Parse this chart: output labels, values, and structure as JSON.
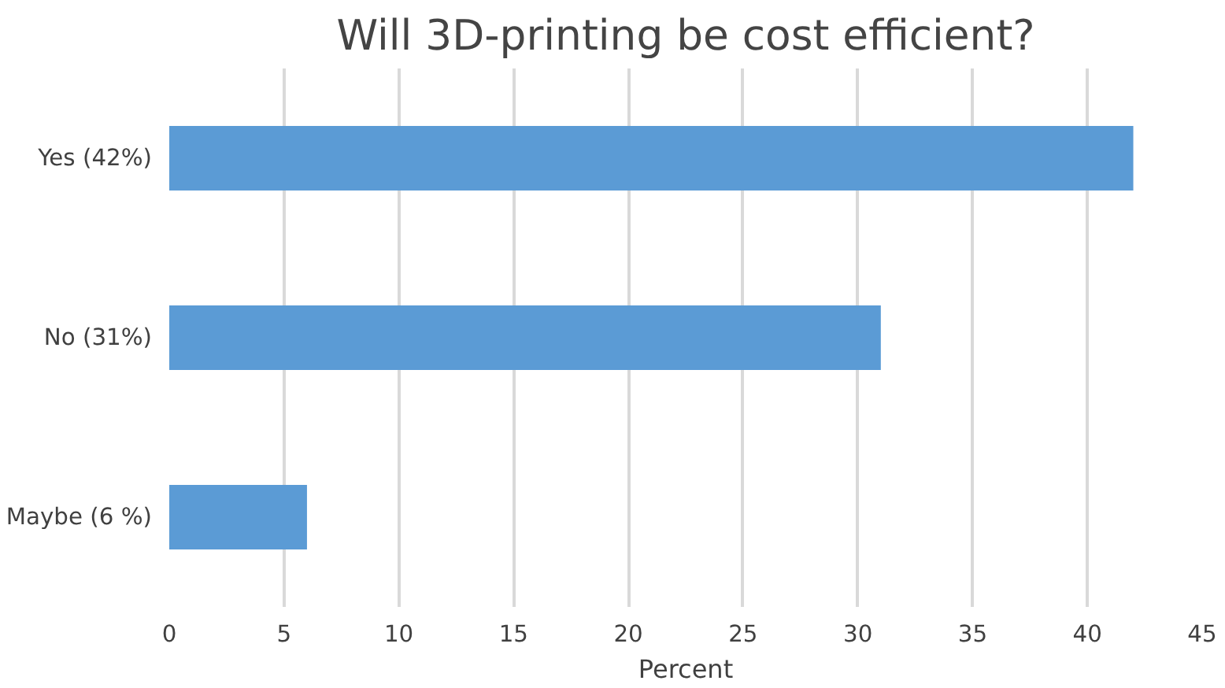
{
  "chart_data": {
    "type": "bar",
    "orientation": "horizontal",
    "title": "Will 3D-printing be cost efficient?",
    "xlabel": "Percent",
    "categories": [
      "Yes (42%)",
      "No (31%)",
      "Maybe (6 %)"
    ],
    "values": [
      42,
      31,
      6
    ],
    "color": "#5b9bd5",
    "xlim": [
      0,
      45
    ],
    "xticks": [
      0,
      5,
      10,
      15,
      20,
      25,
      30,
      35,
      40,
      45
    ],
    "grid": "x"
  }
}
